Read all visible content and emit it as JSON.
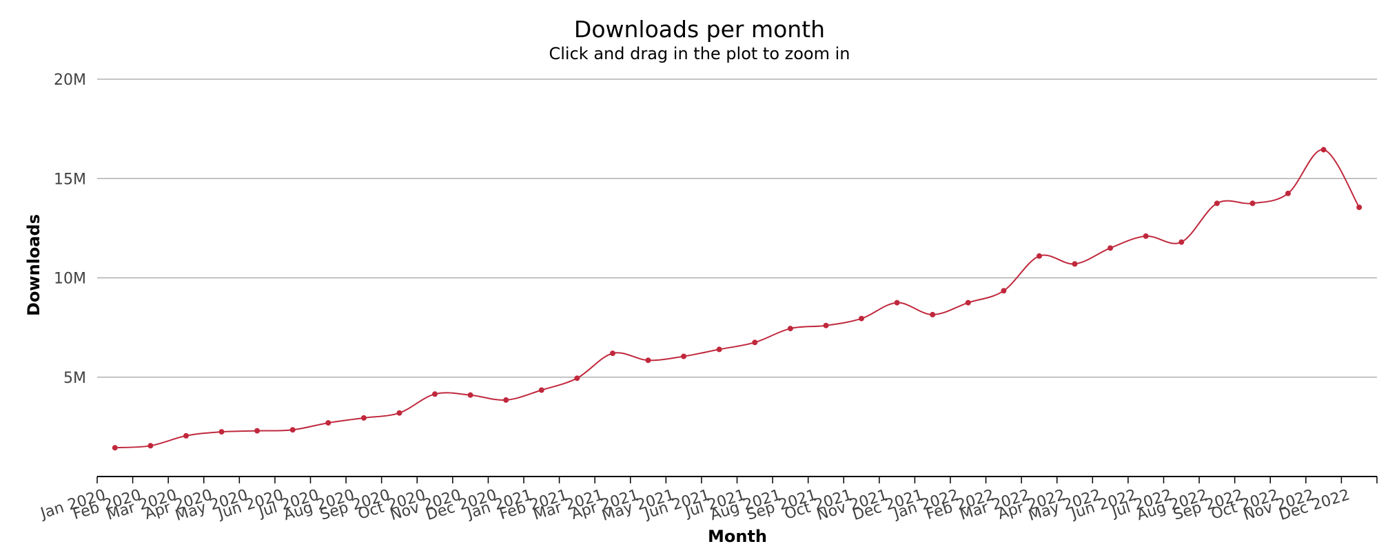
{
  "chart_data": {
    "type": "line",
    "title": "Downloads per month",
    "subtitle": "Click and drag in the plot to zoom in",
    "xlabel": "Month",
    "ylabel": "Downloads",
    "ylim": [
      0,
      20000000
    ],
    "yticks": [
      {
        "value": 5000000,
        "label": "5M"
      },
      {
        "value": 10000000,
        "label": "10M"
      },
      {
        "value": 15000000,
        "label": "15M"
      },
      {
        "value": 20000000,
        "label": "20M"
      }
    ],
    "grid": true,
    "legend": "none",
    "series_color": "#c0283c",
    "categories": [
      "Jan 2020",
      "Feb 2020",
      "Mar 2020",
      "Apr 2020",
      "May 2020",
      "Jun 2020",
      "Jul 2020",
      "Aug 2020",
      "Sep 2020",
      "Oct 2020",
      "Nov 2020",
      "Dec 2020",
      "Jan 2021",
      "Feb 2021",
      "Mar 2021",
      "Apr 2021",
      "May 2021",
      "Jun 2021",
      "Jul 2021",
      "Aug 2021",
      "Sep 2021",
      "Oct 2021",
      "Nov 2021",
      "Dec 2021",
      "Jan 2022",
      "Feb 2022",
      "Mar 2022",
      "Apr 2022",
      "May 2022",
      "Jun 2022",
      "Jul 2022",
      "Aug 2022",
      "Sep 2022",
      "Oct 2022",
      "Nov 2022",
      "Dec 2022"
    ],
    "series": [
      {
        "values": [
          1450000,
          1550000,
          2050000,
          2250000,
          2300000,
          2350000,
          2700000,
          2950000,
          3200000,
          4150000,
          4100000,
          3850000,
          4350000,
          4950000,
          6200000,
          5850000,
          6050000,
          6400000,
          6750000,
          7450000,
          7600000,
          7950000,
          8750000,
          8150000,
          8750000,
          9350000,
          11100000,
          10700000,
          11500000,
          12100000,
          11800000,
          13750000,
          13750000,
          14250000,
          16450000,
          13550000
        ]
      }
    ]
  }
}
